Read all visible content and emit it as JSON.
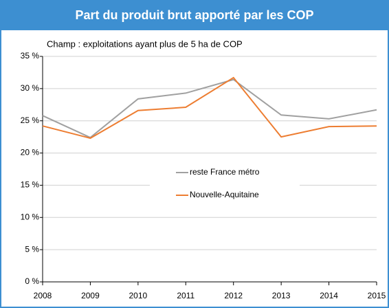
{
  "chart_data": {
    "type": "line",
    "title": "Part du produit brut apporté par les COP",
    "subtitle": "Champ : exploitations ayant plus de 5 ha de COP",
    "x": [
      2008,
      2009,
      2010,
      2011,
      2012,
      2013,
      2014,
      2015
    ],
    "xlim": [
      2008,
      2015
    ],
    "xticks": [
      2008,
      2009,
      2010,
      2011,
      2012,
      2013,
      2014,
      2015
    ],
    "ylim": [
      0,
      35
    ],
    "yticks": [
      {
        "value": 0,
        "label": "0 %"
      },
      {
        "value": 5,
        "label": "5 %"
      },
      {
        "value": 10,
        "label": "10 %"
      },
      {
        "value": 15,
        "label": "15 %"
      },
      {
        "value": 20,
        "label": "20 %"
      },
      {
        "value": 25,
        "label": "25 %"
      },
      {
        "value": 30,
        "label": "30 %"
      },
      {
        "value": 35,
        "label": "35 %"
      }
    ],
    "grid": true,
    "legend": "center",
    "series": [
      {
        "name": "reste France métro",
        "color": "#a0a0a0",
        "values": [
          25.8,
          22.4,
          28.4,
          29.3,
          31.4,
          25.9,
          25.3,
          26.7
        ]
      },
      {
        "name": "Nouvelle-Aquitaine",
        "color": "#ed7d31",
        "values": [
          24.2,
          22.3,
          26.6,
          27.1,
          31.7,
          22.5,
          24.1,
          24.2
        ]
      }
    ]
  }
}
